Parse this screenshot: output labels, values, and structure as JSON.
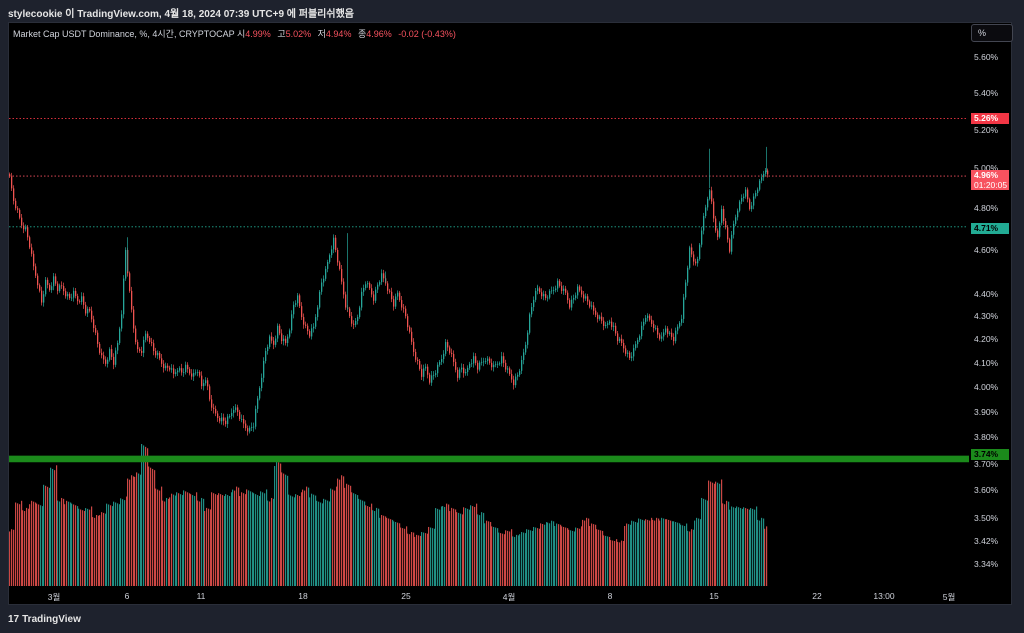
{
  "header": {
    "published": "stylecookie 이 TradingView.com, 4월 18, 2024 07:39 UTC+9 에 퍼블리쉬했음"
  },
  "legend": {
    "title": "Market Cap USDT Dominance, %, 4시간, CRYPTOCAP",
    "open_label": "시",
    "open": "4.99%",
    "high_label": "고",
    "high": "5.02%",
    "low_label": "저",
    "low": "4.94%",
    "close_label": "종",
    "close": "4.96%",
    "change": "-0.02 (-0.43%)"
  },
  "scale_button": "%",
  "footer": {
    "logo_text": "TradingView"
  },
  "colors": {
    "up": "#26a69a",
    "down": "#ef5350",
    "resistance": "#f23645",
    "support": "#22ab94",
    "zone": "#1b8a1b",
    "last_price": "#f7525f"
  },
  "chart_data": {
    "type": "candlestick",
    "scale": "log",
    "ylim": [
      3.295,
      5.86
    ],
    "y_ticks": [
      "5.60%",
      "5.40%",
      "5.20%",
      "5.00%",
      "4.80%",
      "4.60%",
      "4.40%",
      "4.30%",
      "4.20%",
      "4.10%",
      "4.00%",
      "3.90%",
      "3.80%",
      "3.70%",
      "3.60%",
      "3.50%",
      "3.42%",
      "3.34%"
    ],
    "y_tick_values": [
      5.6,
      5.4,
      5.2,
      5.0,
      4.8,
      4.6,
      4.4,
      4.3,
      4.2,
      4.1,
      4.0,
      3.9,
      3.8,
      3.7,
      3.6,
      3.5,
      3.42,
      3.34
    ],
    "x_ticks": [
      "3월",
      "6",
      "11",
      "18",
      "25",
      "4월",
      "8",
      "15",
      "22",
      "13:00",
      "5월"
    ],
    "horizontal_lines": [
      {
        "label": "5.26%",
        "value": 5.26,
        "kind": "resistance"
      },
      {
        "label": "4.71%",
        "value": 4.71,
        "kind": "support"
      }
    ],
    "zone": {
      "label": "3.74%",
      "low": 3.705,
      "high": 3.73
    },
    "last": {
      "label": "4.96%",
      "countdown": "01:20:05",
      "value": 4.96
    },
    "price_path": [
      [
        0,
        4.97
      ],
      [
        3,
        4.85
      ],
      [
        8,
        4.78
      ],
      [
        12,
        4.72
      ],
      [
        16,
        4.7
      ],
      [
        20,
        4.62
      ],
      [
        24,
        4.52
      ],
      [
        28,
        4.45
      ],
      [
        32,
        4.36
      ],
      [
        36,
        4.45
      ],
      [
        40,
        4.42
      ],
      [
        44,
        4.47
      ],
      [
        48,
        4.42
      ],
      [
        52,
        4.43
      ],
      [
        56,
        4.4
      ],
      [
        60,
        4.38
      ],
      [
        64,
        4.4
      ],
      [
        68,
        4.37
      ],
      [
        72,
        4.38
      ],
      [
        76,
        4.32
      ],
      [
        80,
        4.32
      ],
      [
        84,
        4.26
      ],
      [
        88,
        4.18
      ],
      [
        92,
        4.12
      ],
      [
        96,
        4.1
      ],
      [
        100,
        4.15
      ],
      [
        104,
        4.1
      ],
      [
        108,
        4.18
      ],
      [
        112,
        4.32
      ],
      [
        116,
        4.6
      ],
      [
        120,
        4.4
      ],
      [
        124,
        4.25
      ],
      [
        128,
        4.15
      ],
      [
        132,
        4.15
      ],
      [
        136,
        4.22
      ],
      [
        140,
        4.2
      ],
      [
        144,
        4.15
      ],
      [
        148,
        4.13
      ],
      [
        152,
        4.1
      ],
      [
        156,
        4.08
      ],
      [
        160,
        4.08
      ],
      [
        164,
        4.05
      ],
      [
        168,
        4.08
      ],
      [
        172,
        4.06
      ],
      [
        176,
        4.08
      ],
      [
        180,
        4.06
      ],
      [
        184,
        4.05
      ],
      [
        188,
        4.07
      ],
      [
        192,
        4.0
      ],
      [
        196,
        4.04
      ],
      [
        200,
        3.95
      ],
      [
        204,
        3.9
      ],
      [
        208,
        3.88
      ],
      [
        212,
        3.87
      ],
      [
        216,
        3.86
      ],
      [
        220,
        3.88
      ],
      [
        224,
        3.92
      ],
      [
        228,
        3.9
      ],
      [
        232,
        3.86
      ],
      [
        236,
        3.84
      ],
      [
        240,
        3.83
      ],
      [
        244,
        3.85
      ],
      [
        248,
        3.95
      ],
      [
        252,
        4.05
      ],
      [
        256,
        4.15
      ],
      [
        260,
        4.2
      ],
      [
        264,
        4.18
      ],
      [
        268,
        4.25
      ],
      [
        272,
        4.2
      ],
      [
        276,
        4.18
      ],
      [
        280,
        4.25
      ],
      [
        284,
        4.35
      ],
      [
        288,
        4.38
      ],
      [
        292,
        4.3
      ],
      [
        296,
        4.25
      ],
      [
        300,
        4.22
      ],
      [
        304,
        4.25
      ],
      [
        308,
        4.35
      ],
      [
        312,
        4.45
      ],
      [
        316,
        4.5
      ],
      [
        320,
        4.58
      ],
      [
        324,
        4.65
      ],
      [
        328,
        4.55
      ],
      [
        332,
        4.45
      ],
      [
        336,
        4.35
      ],
      [
        340,
        4.3
      ],
      [
        344,
        4.25
      ],
      [
        348,
        4.3
      ],
      [
        352,
        4.4
      ],
      [
        356,
        4.45
      ],
      [
        360,
        4.42
      ],
      [
        364,
        4.38
      ],
      [
        368,
        4.44
      ],
      [
        372,
        4.48
      ],
      [
        376,
        4.45
      ],
      [
        380,
        4.4
      ],
      [
        384,
        4.35
      ],
      [
        388,
        4.4
      ],
      [
        392,
        4.35
      ],
      [
        396,
        4.3
      ],
      [
        400,
        4.22
      ],
      [
        404,
        4.15
      ],
      [
        408,
        4.1
      ],
      [
        412,
        4.05
      ],
      [
        416,
        4.08
      ],
      [
        420,
        4.03
      ],
      [
        424,
        4.05
      ],
      [
        428,
        4.08
      ],
      [
        432,
        4.12
      ],
      [
        436,
        4.18
      ],
      [
        440,
        4.15
      ],
      [
        444,
        4.1
      ],
      [
        448,
        4.05
      ],
      [
        452,
        4.08
      ],
      [
        456,
        4.05
      ],
      [
        460,
        4.1
      ],
      [
        464,
        4.12
      ],
      [
        468,
        4.08
      ],
      [
        472,
        4.1
      ],
      [
        476,
        4.12
      ],
      [
        480,
        4.1
      ],
      [
        484,
        4.08
      ],
      [
        488,
        4.1
      ],
      [
        492,
        4.12
      ],
      [
        496,
        4.08
      ],
      [
        500,
        4.05
      ],
      [
        504,
        4.02
      ],
      [
        508,
        4.05
      ],
      [
        512,
        4.1
      ],
      [
        516,
        4.18
      ],
      [
        520,
        4.3
      ],
      [
        524,
        4.38
      ],
      [
        528,
        4.42
      ],
      [
        532,
        4.4
      ],
      [
        536,
        4.38
      ],
      [
        540,
        4.4
      ],
      [
        544,
        4.42
      ],
      [
        548,
        4.45
      ],
      [
        552,
        4.42
      ],
      [
        556,
        4.4
      ],
      [
        560,
        4.35
      ],
      [
        564,
        4.38
      ],
      [
        568,
        4.42
      ],
      [
        572,
        4.4
      ],
      [
        576,
        4.38
      ],
      [
        580,
        4.35
      ],
      [
        584,
        4.32
      ],
      [
        588,
        4.3
      ],
      [
        592,
        4.28
      ],
      [
        596,
        4.25
      ],
      [
        600,
        4.28
      ],
      [
        604,
        4.25
      ],
      [
        608,
        4.2
      ],
      [
        612,
        4.18
      ],
      [
        616,
        4.15
      ],
      [
        620,
        4.12
      ],
      [
        624,
        4.15
      ],
      [
        628,
        4.2
      ],
      [
        632,
        4.25
      ],
      [
        636,
        4.3
      ],
      [
        640,
        4.28
      ],
      [
        644,
        4.26
      ],
      [
        648,
        4.22
      ],
      [
        652,
        4.2
      ],
      [
        656,
        4.25
      ],
      [
        660,
        4.22
      ],
      [
        664,
        4.2
      ],
      [
        668,
        4.25
      ],
      [
        672,
        4.3
      ],
      [
        676,
        4.45
      ],
      [
        680,
        4.6
      ],
      [
        684,
        4.55
      ],
      [
        688,
        4.55
      ],
      [
        692,
        4.7
      ],
      [
        696,
        4.8
      ],
      [
        700,
        4.9
      ],
      [
        704,
        4.75
      ],
      [
        708,
        4.65
      ],
      [
        712,
        4.8
      ],
      [
        716,
        4.7
      ],
      [
        720,
        4.6
      ],
      [
        724,
        4.72
      ],
      [
        728,
        4.8
      ],
      [
        732,
        4.85
      ],
      [
        736,
        4.88
      ],
      [
        740,
        4.8
      ],
      [
        744,
        4.85
      ],
      [
        748,
        4.9
      ],
      [
        752,
        4.95
      ],
      [
        756,
        5.0
      ],
      [
        758,
        4.96
      ]
    ],
    "volume": [
      {
        "x": 0,
        "v": 0.4
      },
      {
        "x": 6,
        "v": 0.6
      },
      {
        "x": 13,
        "v": 0.55
      },
      {
        "x": 20,
        "v": 0.6
      },
      {
        "x": 27,
        "v": 0.58
      },
      {
        "x": 34,
        "v": 0.72
      },
      {
        "x": 41,
        "v": 0.85
      },
      {
        "x": 48,
        "v": 0.62
      },
      {
        "x": 55,
        "v": 0.6
      },
      {
        "x": 62,
        "v": 0.58
      },
      {
        "x": 69,
        "v": 0.55
      },
      {
        "x": 76,
        "v": 0.56
      },
      {
        "x": 83,
        "v": 0.5
      },
      {
        "x": 90,
        "v": 0.52
      },
      {
        "x": 97,
        "v": 0.58
      },
      {
        "x": 104,
        "v": 0.6
      },
      {
        "x": 111,
        "v": 0.63
      },
      {
        "x": 118,
        "v": 0.78
      },
      {
        "x": 125,
        "v": 0.8
      },
      {
        "x": 132,
        "v": 1.0
      },
      {
        "x": 139,
        "v": 0.85
      },
      {
        "x": 146,
        "v": 0.7
      },
      {
        "x": 153,
        "v": 0.62
      },
      {
        "x": 160,
        "v": 0.65
      },
      {
        "x": 167,
        "v": 0.66
      },
      {
        "x": 174,
        "v": 0.68
      },
      {
        "x": 181,
        "v": 0.66
      },
      {
        "x": 188,
        "v": 0.62
      },
      {
        "x": 195,
        "v": 0.55
      },
      {
        "x": 202,
        "v": 0.66
      },
      {
        "x": 209,
        "v": 0.66
      },
      {
        "x": 216,
        "v": 0.66
      },
      {
        "x": 223,
        "v": 0.7
      },
      {
        "x": 230,
        "v": 0.66
      },
      {
        "x": 237,
        "v": 0.68
      },
      {
        "x": 244,
        "v": 0.66
      },
      {
        "x": 251,
        "v": 0.68
      },
      {
        "x": 258,
        "v": 0.62
      },
      {
        "x": 265,
        "v": 0.88
      },
      {
        "x": 272,
        "v": 0.8
      },
      {
        "x": 279,
        "v": 0.65
      },
      {
        "x": 286,
        "v": 0.66
      },
      {
        "x": 293,
        "v": 0.7
      },
      {
        "x": 300,
        "v": 0.65
      },
      {
        "x": 307,
        "v": 0.6
      },
      {
        "x": 314,
        "v": 0.62
      },
      {
        "x": 321,
        "v": 0.7
      },
      {
        "x": 328,
        "v": 0.78
      },
      {
        "x": 335,
        "v": 0.72
      },
      {
        "x": 342,
        "v": 0.66
      },
      {
        "x": 349,
        "v": 0.62
      },
      {
        "x": 356,
        "v": 0.58
      },
      {
        "x": 363,
        "v": 0.55
      },
      {
        "x": 370,
        "v": 0.5
      },
      {
        "x": 377,
        "v": 0.48
      },
      {
        "x": 384,
        "v": 0.46
      },
      {
        "x": 391,
        "v": 0.42
      },
      {
        "x": 398,
        "v": 0.38
      },
      {
        "x": 405,
        "v": 0.36
      },
      {
        "x": 412,
        "v": 0.38
      },
      {
        "x": 419,
        "v": 0.42
      },
      {
        "x": 426,
        "v": 0.56
      },
      {
        "x": 433,
        "v": 0.58
      },
      {
        "x": 440,
        "v": 0.55
      },
      {
        "x": 447,
        "v": 0.52
      },
      {
        "x": 454,
        "v": 0.56
      },
      {
        "x": 461,
        "v": 0.58
      },
      {
        "x": 468,
        "v": 0.52
      },
      {
        "x": 475,
        "v": 0.46
      },
      {
        "x": 482,
        "v": 0.42
      },
      {
        "x": 489,
        "v": 0.38
      },
      {
        "x": 496,
        "v": 0.4
      },
      {
        "x": 503,
        "v": 0.36
      },
      {
        "x": 510,
        "v": 0.38
      },
      {
        "x": 517,
        "v": 0.4
      },
      {
        "x": 524,
        "v": 0.42
      },
      {
        "x": 531,
        "v": 0.45
      },
      {
        "x": 538,
        "v": 0.46
      },
      {
        "x": 545,
        "v": 0.44
      },
      {
        "x": 552,
        "v": 0.42
      },
      {
        "x": 559,
        "v": 0.4
      },
      {
        "x": 566,
        "v": 0.42
      },
      {
        "x": 573,
        "v": 0.48
      },
      {
        "x": 580,
        "v": 0.44
      },
      {
        "x": 587,
        "v": 0.4
      },
      {
        "x": 594,
        "v": 0.36
      },
      {
        "x": 601,
        "v": 0.33
      },
      {
        "x": 608,
        "v": 0.32
      },
      {
        "x": 615,
        "v": 0.44
      },
      {
        "x": 622,
        "v": 0.46
      },
      {
        "x": 629,
        "v": 0.48
      },
      {
        "x": 636,
        "v": 0.48
      },
      {
        "x": 643,
        "v": 0.48
      },
      {
        "x": 650,
        "v": 0.48
      },
      {
        "x": 657,
        "v": 0.47
      },
      {
        "x": 664,
        "v": 0.46
      },
      {
        "x": 671,
        "v": 0.44
      },
      {
        "x": 678,
        "v": 0.4
      },
      {
        "x": 685,
        "v": 0.48
      },
      {
        "x": 692,
        "v": 0.62
      },
      {
        "x": 699,
        "v": 0.75
      },
      {
        "x": 706,
        "v": 0.75
      },
      {
        "x": 713,
        "v": 0.6
      },
      {
        "x": 720,
        "v": 0.56
      },
      {
        "x": 727,
        "v": 0.56
      },
      {
        "x": 734,
        "v": 0.56
      },
      {
        "x": 741,
        "v": 0.56
      },
      {
        "x": 748,
        "v": 0.48
      },
      {
        "x": 755,
        "v": 0.42
      }
    ]
  }
}
